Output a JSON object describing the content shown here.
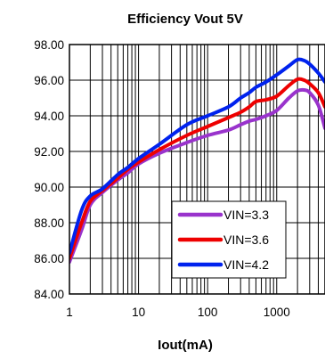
{
  "chart_data": {
    "type": "line",
    "title": "Efficiency Vout 5V",
    "xlabel": "Iout(mA)",
    "ylabel": "",
    "x_scale": "log",
    "xlim": [
      1,
      5000
    ],
    "ylim": [
      84,
      98
    ],
    "grid": true,
    "legend_placement": "bottom-right",
    "x_tick_labels": [
      "1",
      "10",
      "100",
      "1000"
    ],
    "y_tick_labels": [
      "84.00",
      "86.00",
      "88.00",
      "90.00",
      "92.00",
      "94.00",
      "96.00",
      "98.00"
    ],
    "series": [
      {
        "name": "VIN=3.3",
        "color": "#9933cc",
        "x": [
          1,
          1.5,
          2,
          3,
          5,
          7,
          10,
          20,
          50,
          100,
          200,
          300,
          400,
          500,
          700,
          1000,
          1500,
          2000,
          2500,
          3000,
          4000,
          5000
        ],
        "y": [
          85.8,
          87.6,
          89.0,
          89.7,
          90.4,
          90.8,
          91.3,
          91.9,
          92.5,
          92.9,
          93.2,
          93.5,
          93.7,
          93.8,
          94.0,
          94.3,
          95.0,
          95.4,
          95.45,
          95.3,
          94.6,
          93.3
        ]
      },
      {
        "name": "VIN=3.6",
        "color": "#ee0000",
        "x": [
          1,
          1.5,
          2,
          3,
          5,
          7,
          10,
          20,
          50,
          100,
          200,
          300,
          400,
          500,
          700,
          1000,
          1500,
          2000,
          2500,
          3000,
          4000,
          5000
        ],
        "y": [
          86.0,
          88.0,
          89.2,
          89.8,
          90.5,
          91.0,
          91.4,
          92.1,
          92.9,
          93.4,
          93.9,
          94.2,
          94.5,
          94.8,
          94.9,
          95.1,
          95.7,
          96.05,
          96.0,
          95.8,
          95.3,
          94.5
        ]
      },
      {
        "name": "VIN=4.2",
        "color": "#0022ee",
        "x": [
          1,
          1.5,
          2,
          3,
          5,
          7,
          10,
          20,
          50,
          100,
          200,
          300,
          400,
          500,
          700,
          1000,
          1500,
          2000,
          2500,
          3000,
          4000,
          5000
        ],
        "y": [
          86.3,
          88.7,
          89.5,
          89.9,
          90.7,
          91.1,
          91.6,
          92.4,
          93.5,
          94.0,
          94.5,
          95.0,
          95.3,
          95.6,
          95.9,
          96.3,
          96.8,
          97.15,
          97.1,
          96.9,
          96.4,
          95.9
        ]
      }
    ]
  }
}
